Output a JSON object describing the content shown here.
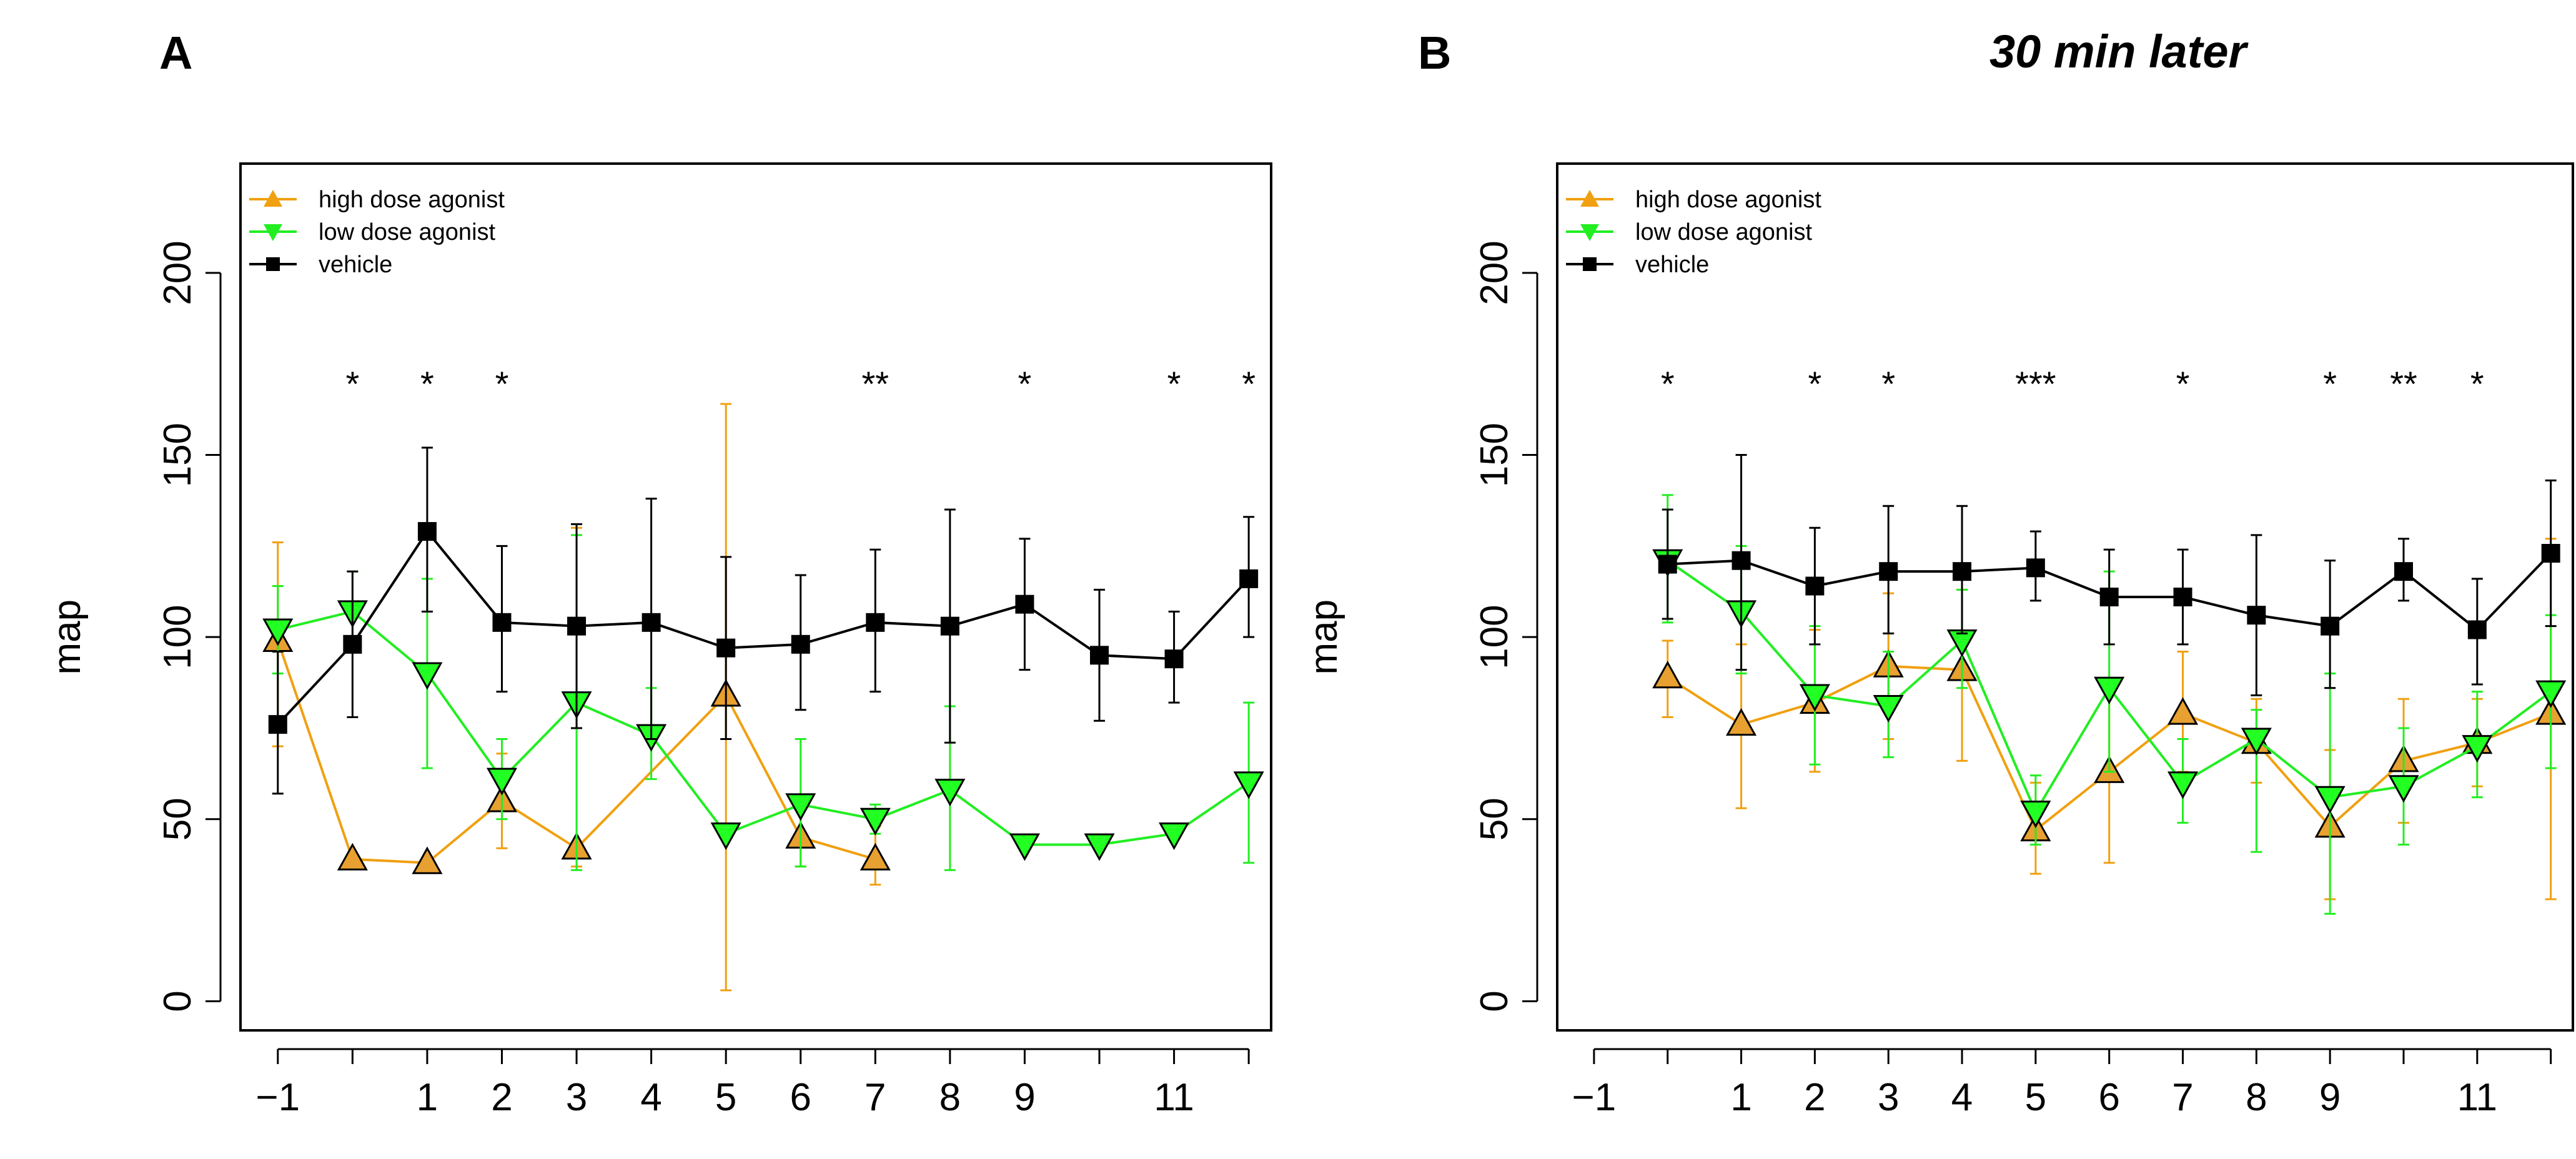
{
  "chart_data": [
    {
      "type": "line",
      "panel_label": "A",
      "title": "",
      "xlabel": "",
      "ylabel": "map",
      "xlim": [
        -1.5,
        12.3
      ],
      "ylim": [
        -8,
        230
      ],
      "x_ticks": [
        -1,
        0,
        1,
        2,
        3,
        4,
        5,
        6,
        7,
        8,
        9,
        10,
        11,
        12
      ],
      "x_tick_labels": [
        "−1",
        "",
        "1",
        "2",
        "3",
        "4",
        "5",
        "6",
        "7",
        "8",
        "9",
        "",
        "11",
        ""
      ],
      "y_ticks": [
        0,
        50,
        100,
        150,
        200
      ],
      "y_tick_labels": [
        "0",
        "50",
        "100",
        "150",
        "200"
      ],
      "legend": [
        "high dose agonist",
        "low dose agonist",
        "vehicle"
      ],
      "legend_position": "top-left",
      "colors": {
        "high": "#f0a010",
        "high_fill": "#e8a030",
        "low": "#22ee22",
        "low_fill": "#22ff22",
        "vehicle": "#000000"
      },
      "significance": [
        {
          "x": 0,
          "label": "*"
        },
        {
          "x": 1,
          "label": "*"
        },
        {
          "x": 2,
          "label": "*"
        },
        {
          "x": 7,
          "label": "**"
        },
        {
          "x": 9,
          "label": "*"
        },
        {
          "x": 11,
          "label": "*"
        },
        {
          "x": 12,
          "label": "*"
        }
      ],
      "significance_y": 170,
      "series": [
        {
          "name": "high dose agonist",
          "key": "high",
          "marker": "triangle-up",
          "x": [
            -1,
            0,
            1,
            2,
            3,
            5,
            6,
            7
          ],
          "values": [
            99,
            39,
            38,
            55,
            42,
            84,
            45,
            39
          ],
          "err_low": [
            70,
            null,
            null,
            42,
            37,
            3,
            37,
            32
          ],
          "err_high": [
            126,
            null,
            null,
            68,
            130,
            164,
            53,
            48
          ]
        },
        {
          "name": "low dose agonist",
          "key": "low",
          "marker": "triangle-down",
          "x": [
            -1,
            0,
            1,
            2,
            3,
            4,
            5,
            6,
            7,
            8,
            9,
            10,
            11,
            12
          ],
          "values": [
            102,
            107,
            90,
            61,
            82,
            73,
            46,
            54,
            50,
            58,
            43,
            43,
            46,
            60
          ],
          "err_low": [
            90,
            96,
            64,
            50,
            36,
            61,
            null,
            37,
            46,
            36,
            null,
            null,
            null,
            38
          ],
          "err_high": [
            114,
            118,
            116,
            72,
            128,
            86,
            null,
            72,
            54,
            81,
            null,
            null,
            null,
            82
          ]
        },
        {
          "name": "vehicle",
          "key": "vehicle",
          "marker": "square",
          "x": [
            -1,
            0,
            1,
            2,
            3,
            4,
            5,
            6,
            7,
            8,
            9,
            10,
            11,
            12
          ],
          "values": [
            76,
            98,
            129,
            104,
            103,
            104,
            97,
            98,
            104,
            103,
            109,
            95,
            94,
            116
          ],
          "err_low": [
            57,
            78,
            107,
            85,
            75,
            72,
            72,
            80,
            85,
            71,
            91,
            77,
            82,
            100
          ],
          "err_high": [
            96,
            118,
            152,
            125,
            131,
            138,
            122,
            117,
            124,
            135,
            127,
            113,
            107,
            133
          ]
        }
      ]
    },
    {
      "type": "line",
      "panel_label": "B",
      "title": "30 min later",
      "xlabel": "",
      "ylabel": "map",
      "xlim": [
        -1.5,
        12.3
      ],
      "ylim": [
        -8,
        230
      ],
      "x_ticks": [
        -1,
        0,
        1,
        2,
        3,
        4,
        5,
        6,
        7,
        8,
        9,
        10,
        11,
        12
      ],
      "x_tick_labels": [
        "−1",
        "",
        "1",
        "2",
        "3",
        "4",
        "5",
        "6",
        "7",
        "8",
        "9",
        "",
        "11",
        ""
      ],
      "y_ticks": [
        0,
        50,
        100,
        150,
        200
      ],
      "y_tick_labels": [
        "0",
        "50",
        "100",
        "150",
        "200"
      ],
      "legend": [
        "high dose agonist",
        "low dose agonist",
        "vehicle"
      ],
      "legend_position": "top-left",
      "colors": {
        "high": "#f0a010",
        "high_fill": "#e8a030",
        "low": "#22ee22",
        "low_fill": "#22ff22",
        "vehicle": "#000000"
      },
      "significance": [
        {
          "x": 0,
          "label": "*"
        },
        {
          "x": 2,
          "label": "*"
        },
        {
          "x": 3,
          "label": "*"
        },
        {
          "x": 5,
          "label": "***"
        },
        {
          "x": 7,
          "label": "*"
        },
        {
          "x": 9,
          "label": "*"
        },
        {
          "x": 10,
          "label": "**"
        },
        {
          "x": 11,
          "label": "*"
        }
      ],
      "significance_y": 170,
      "series": [
        {
          "name": "high dose agonist",
          "key": "high",
          "marker": "triangle-up",
          "x": [
            0,
            1,
            2,
            3,
            4,
            5,
            6,
            7,
            8,
            9,
            10,
            11,
            12
          ],
          "values": [
            89,
            76,
            82,
            92,
            91,
            47,
            63,
            79,
            71,
            48,
            66,
            71,
            79
          ],
          "err_low": [
            78,
            53,
            63,
            72,
            66,
            35,
            38,
            63,
            60,
            28,
            49,
            59,
            28
          ],
          "err_high": [
            99,
            98,
            102,
            112,
            113,
            60,
            88,
            96,
            83,
            69,
            83,
            83,
            127
          ]
        },
        {
          "name": "low dose agonist",
          "key": "low",
          "marker": "triangle-down",
          "x": [
            0,
            1,
            2,
            3,
            4,
            5,
            6,
            7,
            8,
            9,
            10,
            11,
            12
          ],
          "values": [
            121,
            107,
            84,
            81,
            99,
            52,
            86,
            60,
            72,
            56,
            59,
            70,
            85
          ],
          "err_low": [
            104,
            90,
            65,
            67,
            86,
            43,
            63,
            49,
            41,
            24,
            43,
            56,
            64
          ],
          "err_high": [
            139,
            125,
            103,
            96,
            113,
            62,
            118,
            72,
            80,
            90,
            75,
            85,
            106
          ]
        },
        {
          "name": "vehicle",
          "key": "vehicle",
          "marker": "square",
          "x": [
            0,
            1,
            2,
            3,
            4,
            5,
            6,
            7,
            8,
            9,
            10,
            11,
            12
          ],
          "values": [
            120,
            121,
            114,
            118,
            118,
            119,
            111,
            111,
            106,
            103,
            118,
            102,
            123
          ],
          "err_low": [
            105,
            91,
            98,
            101,
            101,
            110,
            98,
            98,
            84,
            86,
            110,
            87,
            103
          ],
          "err_high": [
            135,
            150,
            130,
            136,
            136,
            129,
            124,
            124,
            128,
            121,
            127,
            116,
            143
          ]
        }
      ]
    }
  ]
}
